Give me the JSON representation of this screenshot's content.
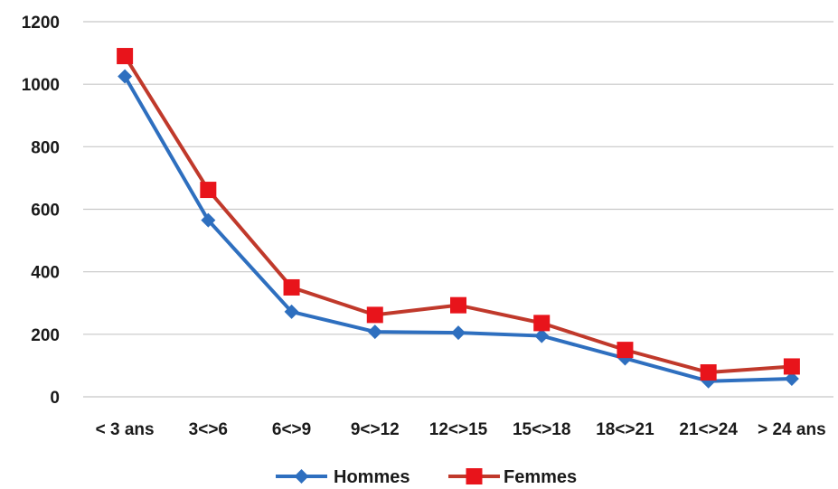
{
  "chart_data": {
    "type": "line",
    "categories": [
      "< 3 ans",
      "3<>6",
      "6<>9",
      "9<>12",
      "12<>15",
      "15<>18",
      "18<>21",
      "21<>24",
      "> 24 ans"
    ],
    "series": [
      {
        "name": "Hommes",
        "values": [
          1025,
          565,
          272,
          208,
          205,
          195,
          123,
          50,
          58
        ],
        "color": "#2e6fbf",
        "marker": "diamond"
      },
      {
        "name": "Femmes",
        "values": [
          1090,
          662,
          350,
          262,
          293,
          236,
          150,
          78,
          97
        ],
        "color": "#c0392b",
        "marker": "square",
        "marker_color": "#e8141b"
      }
    ],
    "yticks": [
      0,
      200,
      400,
      600,
      800,
      1000,
      1200
    ],
    "ylim": [
      0,
      1200
    ],
    "grid": true,
    "legend_position": "bottom"
  }
}
